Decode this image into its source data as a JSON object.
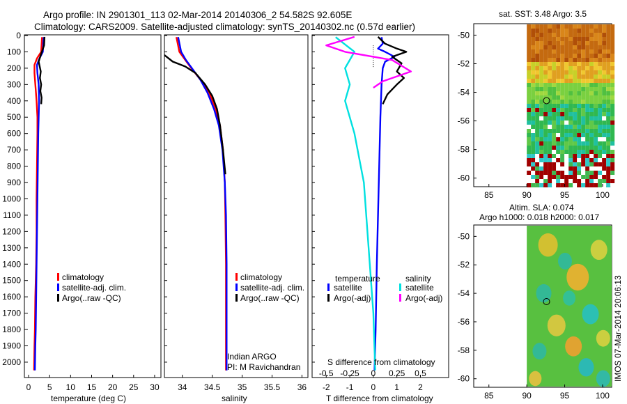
{
  "header": {
    "line1": "Argo profile: IN 2901301_113 02-Mar-2014 20140306_2 54.582S 92.605E",
    "line2": "Climatology: CARS2009. Satellite-adjusted climatology: synTS_20140302.nc (0.57d earlier)"
  },
  "depth_ticks": [
    "0",
    "100",
    "200",
    "300",
    "400",
    "500",
    "600",
    "700",
    "800",
    "900",
    "1000",
    "1100",
    "1200",
    "1300",
    "1400",
    "1500",
    "1600",
    "1700",
    "1800",
    "1900",
    "2000"
  ],
  "colors": {
    "climatology": "#ff0000",
    "satellite": "#0000ff",
    "argo": "#000000",
    "salinity_satellite": "#00e0e0",
    "salinity_argo": "#ff00ff"
  },
  "chart_data": [
    {
      "type": "line",
      "name": "temperature-profile",
      "xlabel": "temperature (deg C)",
      "ylabel": "depth",
      "xticks": [
        "0",
        "5",
        "10",
        "15",
        "20",
        "25",
        "30"
      ],
      "xlim": [
        -1,
        31.5
      ],
      "ylim": [
        0,
        2060
      ],
      "legend": [
        "climatology",
        "satellite-adj. clim.",
        "Argo(..raw -QC)"
      ],
      "series": [
        {
          "name": "climatology",
          "color": "#ff0000",
          "x": [
            3.2,
            3.0,
            2.0,
            1.4,
            1.4,
            1.6,
            1.9,
            2.1,
            2.1,
            2.0,
            1.9,
            1.9,
            1.8,
            1.7,
            1.6,
            1.5,
            1.4,
            1.3
          ],
          "y": [
            10,
            100,
            140,
            180,
            230,
            300,
            400,
            500,
            600,
            800,
            1000,
            1200,
            1400,
            1500,
            1600,
            1800,
            1900,
            2050
          ]
        },
        {
          "name": "satellite-adj. clim.",
          "color": "#0000ff",
          "x": [
            3.6,
            3.4,
            2.6,
            2.0,
            2.1,
            2.4,
            2.5,
            2.4,
            2.3,
            2.2,
            2.1,
            2.0,
            1.9,
            1.8,
            1.7,
            1.6,
            1.5
          ],
          "y": [
            10,
            100,
            140,
            180,
            230,
            300,
            400,
            500,
            600,
            800,
            1000,
            1200,
            1400,
            1600,
            1800,
            1900,
            2050
          ]
        },
        {
          "name": "Argo(..raw -QC)",
          "color": "#000000",
          "x": [
            3.8,
            3.7,
            2.9,
            2.4,
            2.9,
            2.7,
            3.0,
            2.8,
            3.1,
            3.0
          ],
          "y": [
            8,
            60,
            120,
            160,
            220,
            260,
            300,
            340,
            380,
            420
          ]
        }
      ]
    },
    {
      "type": "line",
      "name": "salinity-profile",
      "xlabel": "salinity",
      "xticks": [
        "34",
        "34.5",
        "35",
        "35.5",
        "36"
      ],
      "xlim": [
        33.7,
        36.1
      ],
      "ylim": [
        0,
        2060
      ],
      "legend": [
        "climatology",
        "satellite-adj. clim.",
        "Argo(..raw -QC)"
      ],
      "annotation": [
        "Indian ARGO",
        "PI: M Ravichandran"
      ],
      "series": [
        {
          "name": "climatology",
          "color": "#ff0000",
          "x": [
            33.9,
            33.95,
            34.05,
            34.15,
            34.3,
            34.45,
            34.56,
            34.63,
            34.68,
            34.71,
            34.72,
            34.73,
            34.73,
            34.73,
            34.73
          ],
          "y": [
            10,
            100,
            150,
            200,
            270,
            350,
            450,
            550,
            700,
            900,
            1100,
            1400,
            1700,
            1900,
            2050
          ]
        },
        {
          "name": "satellite-adj. clim.",
          "color": "#0000ff",
          "x": [
            33.93,
            33.98,
            34.06,
            34.16,
            34.3,
            34.42,
            34.53,
            34.61,
            34.67,
            34.71,
            34.73,
            34.74,
            34.74,
            34.74,
            34.74
          ],
          "y": [
            10,
            100,
            150,
            200,
            270,
            350,
            450,
            550,
            700,
            900,
            1100,
            1400,
            1700,
            1900,
            2050
          ]
        },
        {
          "name": "Argo(..raw -QC)",
          "color": "#000000",
          "x": [
            33.7,
            33.84,
            34.05,
            34.22,
            34.38,
            34.5,
            34.58,
            34.63,
            34.68,
            34.72
          ],
          "y": [
            120,
            160,
            190,
            230,
            300,
            370,
            450,
            550,
            700,
            850
          ]
        }
      ]
    },
    {
      "type": "line",
      "name": "difference-profile",
      "xlabel": "T difference from climatology",
      "xlabel2": "S difference from climatology",
      "xticks": [
        "-2",
        "-1",
        "0",
        "1",
        "2"
      ],
      "xticks2": [
        "-0.5",
        "-0.25",
        "0",
        "0.25",
        "0.5"
      ],
      "xlim": [
        -2.6,
        3.2
      ],
      "ylim": [
        0,
        2060
      ],
      "legend_temperature_title": "temperature",
      "legend_salinity_title": "salinity",
      "legend": [
        "satellite",
        "Argo(-adj)",
        "satellite",
        "Argo(-adj)"
      ],
      "series": [
        {
          "name": "temperature satellite",
          "color": "#0000ff",
          "x": [
            0.35,
            0.4,
            0.2,
            0.5,
            0.9,
            0.5,
            0.4,
            0.35,
            0.3,
            0.25,
            0.2,
            0.15,
            0.1,
            0.05
          ],
          "y": [
            10,
            50,
            80,
            100,
            130,
            160,
            200,
            300,
            500,
            800,
            1100,
            1400,
            1800,
            2050
          ]
        },
        {
          "name": "temperature Argo(-adj)",
          "color": "#000000",
          "x": [
            0.2,
            0.5,
            1.0,
            1.4,
            0.8,
            1.2,
            1.0,
            1.3,
            1.0,
            0.6,
            0.4
          ],
          "y": [
            8,
            50,
            80,
            100,
            130,
            170,
            220,
            260,
            300,
            360,
            420
          ]
        },
        {
          "name": "salinity satellite",
          "color": "#00e0e0",
          "x": [
            -0.4,
            -0.2,
            -0.3,
            -0.25,
            -0.3,
            -0.2,
            -0.1,
            -0.05,
            0.0,
            0.02
          ],
          "y": [
            10,
            100,
            200,
            300,
            400,
            600,
            900,
            1300,
            1700,
            2050
          ]
        },
        {
          "name": "salinity Argo(-adj)",
          "color": "#ff00ff",
          "x": [
            -0.2,
            -0.5,
            -0.3,
            0.2,
            0.4,
            0.1,
            0.0
          ],
          "y": [
            8,
            60,
            100,
            150,
            220,
            280,
            320
          ]
        }
      ]
    },
    {
      "type": "heatmap",
      "name": "sst-map",
      "title": "sat. SST: 3.48 Argo: 3.5",
      "xticks": [
        "85",
        "90",
        "95",
        "100"
      ],
      "yticks": [
        "-50",
        "-52",
        "-54",
        "-56",
        "-58",
        "-60"
      ],
      "xlim": [
        83,
        101.2
      ],
      "ylim": [
        -60.6,
        -49.2
      ],
      "float_position": {
        "lon": 92.605,
        "lat": -54.582
      }
    },
    {
      "type": "heatmap",
      "name": "sla-map",
      "title": "Altim. SLA: 0.074",
      "title2": "Argo h1000: 0.018 h2000: 0.017",
      "xticks": [
        "85",
        "90",
        "95",
        "100"
      ],
      "yticks": [
        "-50",
        "-52",
        "-54",
        "-56",
        "-58",
        "-60"
      ],
      "xlim": [
        83,
        101.2
      ],
      "ylim": [
        -60.6,
        -49.2
      ],
      "float_position": {
        "lon": 92.605,
        "lat": -54.582
      }
    }
  ],
  "watermark": "IMOS 07-Mar-2014 20:06:13"
}
